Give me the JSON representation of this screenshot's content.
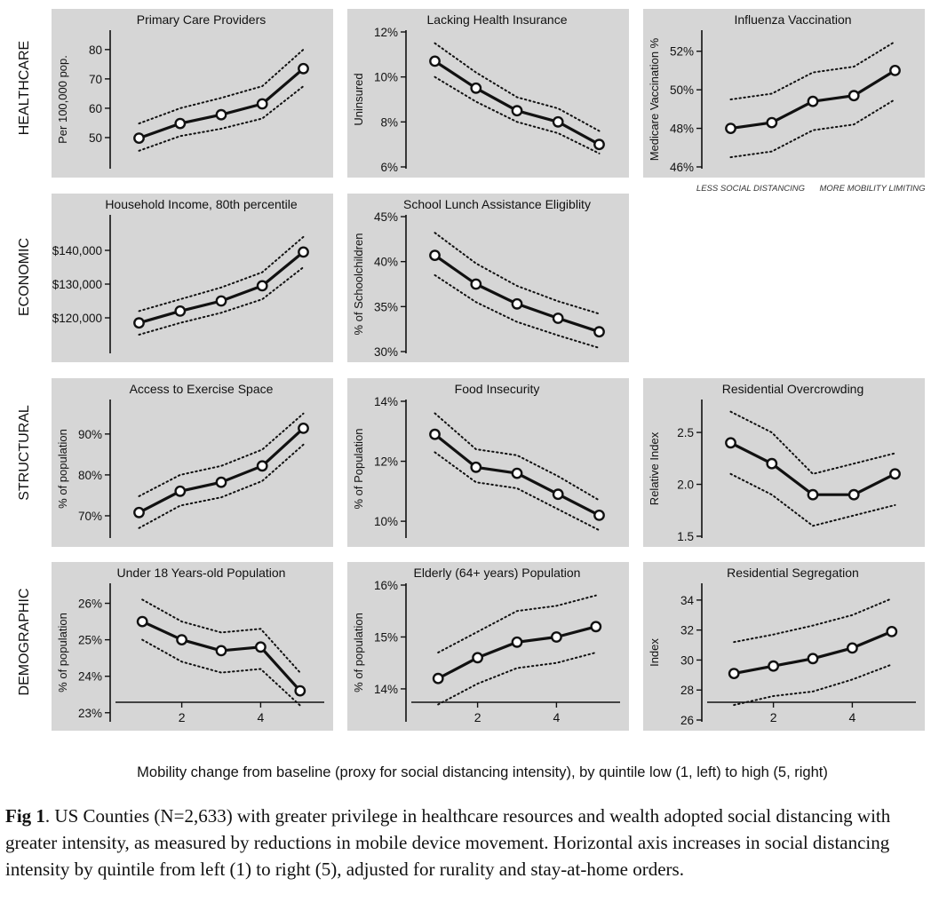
{
  "row_labels": [
    "HEALTHCARE",
    "ECONOMIC",
    "STRUCTURAL",
    "DEMOGRAPHIC"
  ],
  "x_axis_caption": "Mobility change from baseline (proxy for social distancing intensity), by quintile low (1, left) to high (5, right)",
  "direction_labels": {
    "left": "LESS SOCIAL DISTANCING",
    "right": "MORE MOBILITY LIMITING"
  },
  "figure_caption": {
    "label": "Fig 1",
    "text": ". US Counties (N=2,633) with greater privilege in healthcare resources and wealth adopted social distancing with greater intensity, as measured by reductions in mobile device movement. Horizontal axis increases in social distancing intensity by quintile from left (1) to right (5), adjusted for rurality and stay-at-home orders."
  },
  "colors": {
    "panel_bg": "#d6d6d6",
    "line": "#111111",
    "marker_fill": "#ffffff",
    "text": "#111111"
  },
  "chart_data": [
    {
      "type": "line",
      "row": 0,
      "col": 0,
      "title": "Primary Care Providers",
      "ylabel": "Per 100,000 pop.",
      "x": [
        1,
        2,
        3,
        4,
        5
      ],
      "ylim": [
        40,
        86
      ],
      "yticks": [
        50,
        60,
        70,
        80
      ],
      "ytick_labels": [
        "50",
        "60",
        "70",
        "80"
      ],
      "series": [
        {
          "values": [
            49.8,
            54.8,
            57.8,
            61.5,
            73.5
          ]
        },
        {
          "role": "upper",
          "values": [
            54.8,
            60,
            63.5,
            67.5,
            80
          ]
        },
        {
          "role": "lower",
          "values": [
            45.5,
            50.5,
            53,
            56.5,
            67.5
          ]
        }
      ]
    },
    {
      "type": "line",
      "row": 0,
      "col": 1,
      "title": "Lacking Health Insurance",
      "ylabel": "Uninsured",
      "x": [
        1,
        2,
        3,
        4,
        5
      ],
      "ylim": [
        6,
        12
      ],
      "yticks": [
        6,
        8,
        10,
        12
      ],
      "ytick_labels": [
        "6%",
        "8%",
        "10%",
        "12%"
      ],
      "series": [
        {
          "values": [
            10.7,
            9.5,
            8.5,
            8.0,
            7.0
          ]
        },
        {
          "role": "upper",
          "values": [
            11.5,
            10.2,
            9.1,
            8.6,
            7.6
          ]
        },
        {
          "role": "lower",
          "values": [
            10.0,
            8.9,
            8.0,
            7.5,
            6.6
          ]
        }
      ]
    },
    {
      "type": "line",
      "row": 0,
      "col": 2,
      "title": "Influenza Vaccination",
      "ylabel": "Medicare Vaccination %",
      "x": [
        1,
        2,
        3,
        4,
        5
      ],
      "ylim": [
        46,
        53
      ],
      "yticks": [
        46,
        48,
        50,
        52
      ],
      "ytick_labels": [
        "46%",
        "48%",
        "50%",
        "52%"
      ],
      "series": [
        {
          "values": [
            48.0,
            48.3,
            49.4,
            49.7,
            51.0
          ]
        },
        {
          "role": "upper",
          "values": [
            49.5,
            49.8,
            50.9,
            51.2,
            52.5
          ]
        },
        {
          "role": "lower",
          "values": [
            46.5,
            46.8,
            47.9,
            48.2,
            49.5
          ]
        }
      ]
    },
    {
      "type": "line",
      "row": 1,
      "col": 0,
      "title": "Household Income, 80th percentile",
      "ylabel": "",
      "x": [
        1,
        2,
        3,
        4,
        5
      ],
      "ylim": [
        110000,
        150000
      ],
      "yticks": [
        120000,
        130000,
        140000
      ],
      "ytick_labels": [
        "$120,000",
        "$130,000",
        "$140,000"
      ],
      "series": [
        {
          "values": [
            118500,
            122000,
            125000,
            129500,
            139500
          ]
        },
        {
          "role": "upper",
          "values": [
            122000,
            125500,
            129000,
            133500,
            144000
          ]
        },
        {
          "role": "lower",
          "values": [
            115000,
            118500,
            121500,
            125500,
            135000
          ]
        }
      ]
    },
    {
      "type": "line",
      "row": 1,
      "col": 1,
      "title": "School Lunch Assistance Eligiblity",
      "ylabel": "% of Schoolchildren",
      "x": [
        1,
        2,
        3,
        4,
        5
      ],
      "ylim": [
        30,
        45
      ],
      "yticks": [
        30,
        35,
        40,
        45
      ],
      "ytick_labels": [
        "30%",
        "35%",
        "40%",
        "45%"
      ],
      "series": [
        {
          "values": [
            40.7,
            37.5,
            35.3,
            33.7,
            32.2
          ]
        },
        {
          "role": "upper",
          "values": [
            43.2,
            39.8,
            37.3,
            35.6,
            34.2
          ]
        },
        {
          "role": "lower",
          "values": [
            38.5,
            35.5,
            33.3,
            31.8,
            30.4
          ]
        }
      ]
    },
    {
      "type": "line",
      "row": 2,
      "col": 0,
      "title": "Access to Exercise Space",
      "ylabel": "% of population",
      "x": [
        1,
        2,
        3,
        4,
        5
      ],
      "ylim": [
        65,
        98
      ],
      "yticks": [
        70,
        80,
        90
      ],
      "ytick_labels": [
        "70%",
        "80%",
        "90%"
      ],
      "series": [
        {
          "values": [
            70.8,
            76.0,
            78.2,
            82.2,
            91.4
          ]
        },
        {
          "role": "upper",
          "values": [
            74.8,
            80.0,
            82.2,
            86.2,
            95.0
          ]
        },
        {
          "role": "lower",
          "values": [
            67.0,
            72.5,
            74.5,
            78.5,
            87.4
          ]
        }
      ]
    },
    {
      "type": "line",
      "row": 2,
      "col": 1,
      "title": "Food Insecurity",
      "ylabel": "% of Population",
      "x": [
        1,
        2,
        3,
        4,
        5
      ],
      "ylim": [
        9.5,
        14
      ],
      "yticks": [
        10,
        12,
        14
      ],
      "ytick_labels": [
        "10%",
        "12%",
        "14%"
      ],
      "series": [
        {
          "values": [
            12.9,
            11.8,
            11.6,
            10.9,
            10.2
          ]
        },
        {
          "role": "upper",
          "values": [
            13.6,
            12.4,
            12.2,
            11.5,
            10.7
          ]
        },
        {
          "role": "lower",
          "values": [
            12.3,
            11.3,
            11.1,
            10.4,
            9.7
          ]
        }
      ]
    },
    {
      "type": "line",
      "row": 2,
      "col": 2,
      "title": "Residential Overcrowding",
      "ylabel": "Relative Index",
      "x": [
        1,
        2,
        3,
        4,
        5
      ],
      "ylim": [
        1.5,
        2.8
      ],
      "yticks": [
        1.5,
        2.0,
        2.5
      ],
      "ytick_labels": [
        "1.5",
        "2.0",
        "2.5"
      ],
      "series": [
        {
          "values": [
            2.4,
            2.2,
            1.9,
            1.9,
            2.1
          ]
        },
        {
          "role": "upper",
          "values": [
            2.7,
            2.5,
            2.1,
            2.2,
            2.3
          ]
        },
        {
          "role": "lower",
          "values": [
            2.1,
            1.9,
            1.6,
            1.7,
            1.8
          ]
        }
      ]
    },
    {
      "type": "line",
      "row": 3,
      "col": 0,
      "title": "Under 18 Years-old Population",
      "ylabel": "% of population",
      "x": [
        1,
        2,
        3,
        4,
        5
      ],
      "xlim": [
        0.5,
        5.5
      ],
      "ylim": [
        22.8,
        26.5
      ],
      "yticks": [
        23,
        24,
        25,
        26
      ],
      "ytick_labels": [
        "23%",
        "24%",
        "25%",
        "26%"
      ],
      "xticks": [
        2,
        4
      ],
      "xtick_labels": [
        "2",
        "4"
      ],
      "series": [
        {
          "values": [
            25.5,
            25.0,
            24.7,
            24.8,
            23.6
          ]
        },
        {
          "role": "upper",
          "values": [
            26.1,
            25.5,
            25.2,
            25.3,
            24.1
          ]
        },
        {
          "role": "lower",
          "values": [
            25.0,
            24.4,
            24.1,
            24.2,
            23.2
          ]
        }
      ]
    },
    {
      "type": "line",
      "row": 3,
      "col": 1,
      "title": "Elderly (64+ years) Population",
      "ylabel": "% of population",
      "x": [
        1,
        2,
        3,
        4,
        5
      ],
      "xlim": [
        0.5,
        5.5
      ],
      "ylim": [
        13.4,
        16
      ],
      "yticks": [
        14,
        15,
        16
      ],
      "ytick_labels": [
        "14%",
        "15%",
        "16%"
      ],
      "xticks": [
        2,
        4
      ],
      "xtick_labels": [
        "2",
        "4"
      ],
      "series": [
        {
          "values": [
            14.2,
            14.6,
            14.9,
            15.0,
            15.2
          ]
        },
        {
          "role": "upper",
          "values": [
            14.7,
            15.1,
            15.5,
            15.6,
            15.8
          ]
        },
        {
          "role": "lower",
          "values": [
            13.7,
            14.1,
            14.4,
            14.5,
            14.7
          ]
        }
      ]
    },
    {
      "type": "line",
      "row": 3,
      "col": 2,
      "title": "Residential Segregation",
      "ylabel": "Index",
      "x": [
        1,
        2,
        3,
        4,
        5
      ],
      "xlim": [
        0.5,
        5.5
      ],
      "ylim": [
        26,
        35
      ],
      "yticks": [
        26,
        28,
        30,
        32,
        34
      ],
      "ytick_labels": [
        "26",
        "28",
        "30",
        "32",
        "34"
      ],
      "xticks": [
        2,
        4
      ],
      "xtick_labels": [
        "2",
        "4"
      ],
      "series": [
        {
          "values": [
            29.1,
            29.6,
            30.1,
            30.8,
            31.9
          ]
        },
        {
          "role": "upper",
          "values": [
            31.2,
            31.7,
            32.3,
            33.0,
            34.1
          ]
        },
        {
          "role": "lower",
          "values": [
            27.0,
            27.6,
            27.9,
            28.7,
            29.7
          ]
        }
      ]
    }
  ]
}
